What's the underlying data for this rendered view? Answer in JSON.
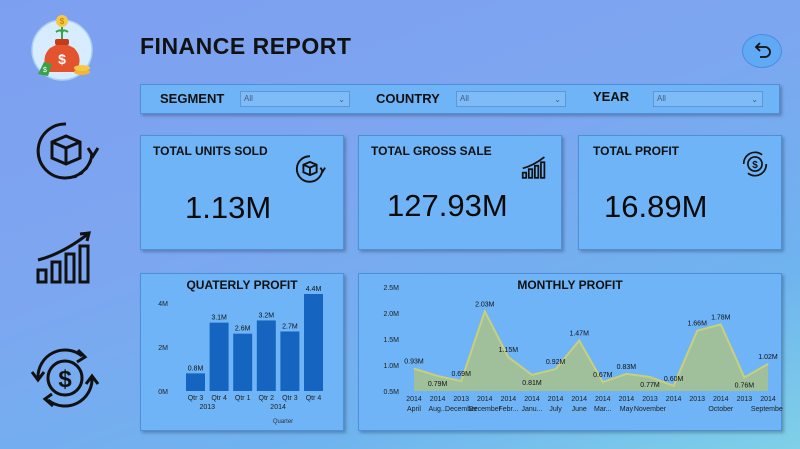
{
  "header": {
    "title": "FINANCE REPORT"
  },
  "filters": [
    {
      "label": "SEGMENT",
      "value": "All"
    },
    {
      "label": "COUNTRY",
      "value": "All"
    },
    {
      "label": "YEAR",
      "value": "All"
    }
  ],
  "kpis": [
    {
      "title": "TOTAL UNITS SOLD",
      "value": "1.13M",
      "icon": "box-cycle-icon"
    },
    {
      "title": "TOTAL GROSS SALE",
      "value": "127.93M",
      "icon": "growth-chart-icon"
    },
    {
      "title": "TOTAL PROFIT",
      "value": "16.89M",
      "icon": "dollar-cycle-icon"
    }
  ],
  "colors": {
    "accent_bar": "#1565c0",
    "area_fill": "#a9c28c",
    "area_line": "#c9cf7a",
    "card_bg": "#6eb4f6"
  },
  "chart_data": [
    {
      "type": "bar",
      "title": "QUATERLY PROFIT",
      "xlabel": "Quarter",
      "ylabel": "",
      "categories": [
        "Qtr 3",
        "Qtr 4",
        "Qtr 1",
        "Qtr 2",
        "Qtr 3",
        "Qtr 4"
      ],
      "groups": [
        {
          "label": "2013",
          "span": [
            0,
            1
          ]
        },
        {
          "label": "2014",
          "span": [
            2,
            5
          ]
        }
      ],
      "values": [
        0.8,
        3.1,
        2.6,
        3.2,
        2.7,
        4.4
      ],
      "data_labels": [
        "0.8M",
        "3.1M",
        "2.6M",
        "3.2M",
        "2.7M",
        "4.4M"
      ],
      "yticks": [
        "0M",
        "2M",
        "4M"
      ],
      "ylim": [
        0,
        4.4
      ]
    },
    {
      "type": "area",
      "title": "MONTHLY PROFIT",
      "x_years": [
        "2014",
        "2014",
        "2013",
        "2014",
        "2014",
        "2014",
        "2014",
        "2014",
        "2014",
        "2014",
        "2013",
        "2014",
        "2013",
        "2014",
        "2013",
        "2014"
      ],
      "x_months": [
        "April",
        "Aug...",
        "December",
        "December",
        "Febr...",
        "Janu...",
        "July",
        "June",
        "Mar...",
        "May",
        "November",
        "",
        "",
        "October",
        "",
        "September"
      ],
      "values": [
        0.93,
        0.79,
        0.69,
        2.03,
        1.15,
        0.81,
        0.92,
        1.47,
        0.67,
        0.83,
        0.77,
        0.6,
        1.66,
        1.78,
        0.76,
        1.02
      ],
      "data_labels": [
        "0.93M",
        "0.79M",
        "0.69M",
        "2.03M",
        "1.15M",
        "0.81M",
        "0.92M",
        "1.47M",
        "0.67M",
        "0.83M",
        "0.77M",
        "0.60M",
        "1.66M",
        "1.78M",
        "0.76M",
        "1.02M"
      ],
      "yticks": [
        "0.5M",
        "1.0M",
        "1.5M",
        "2.0M",
        "2.5M"
      ],
      "ylim": [
        0.5,
        2.5
      ]
    }
  ]
}
